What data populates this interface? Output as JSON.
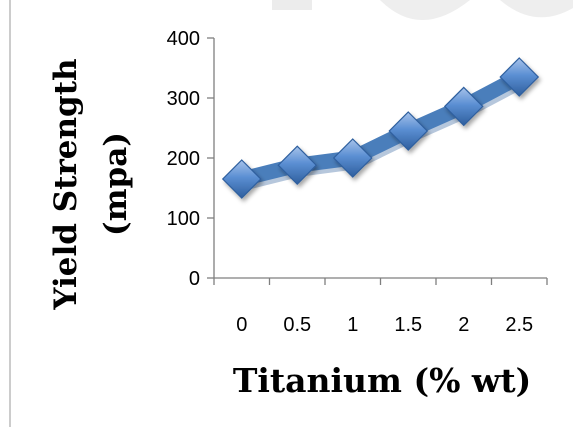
{
  "chart_data": {
    "type": "line",
    "title": "",
    "xlabel": "Titanium (% wt)",
    "ylabel_line1": "Yield Strength",
    "ylabel_line2": "(mpa)",
    "x": [
      0,
      0.5,
      1,
      1.5,
      2,
      2.5
    ],
    "x_tick_labels": [
      "0",
      "0.5",
      "1",
      "1.5",
      "2",
      "2.5"
    ],
    "series": [
      {
        "values": [
          165,
          188,
          200,
          245,
          286,
          335
        ]
      }
    ],
    "ylim": [
      0,
      400
    ],
    "y_ticks": [
      0,
      100,
      200,
      300,
      400
    ],
    "grid": false,
    "legend": "none",
    "line_color": "#4a7ebb",
    "marker": "diamond",
    "marker_color": "#4f81bd"
  }
}
